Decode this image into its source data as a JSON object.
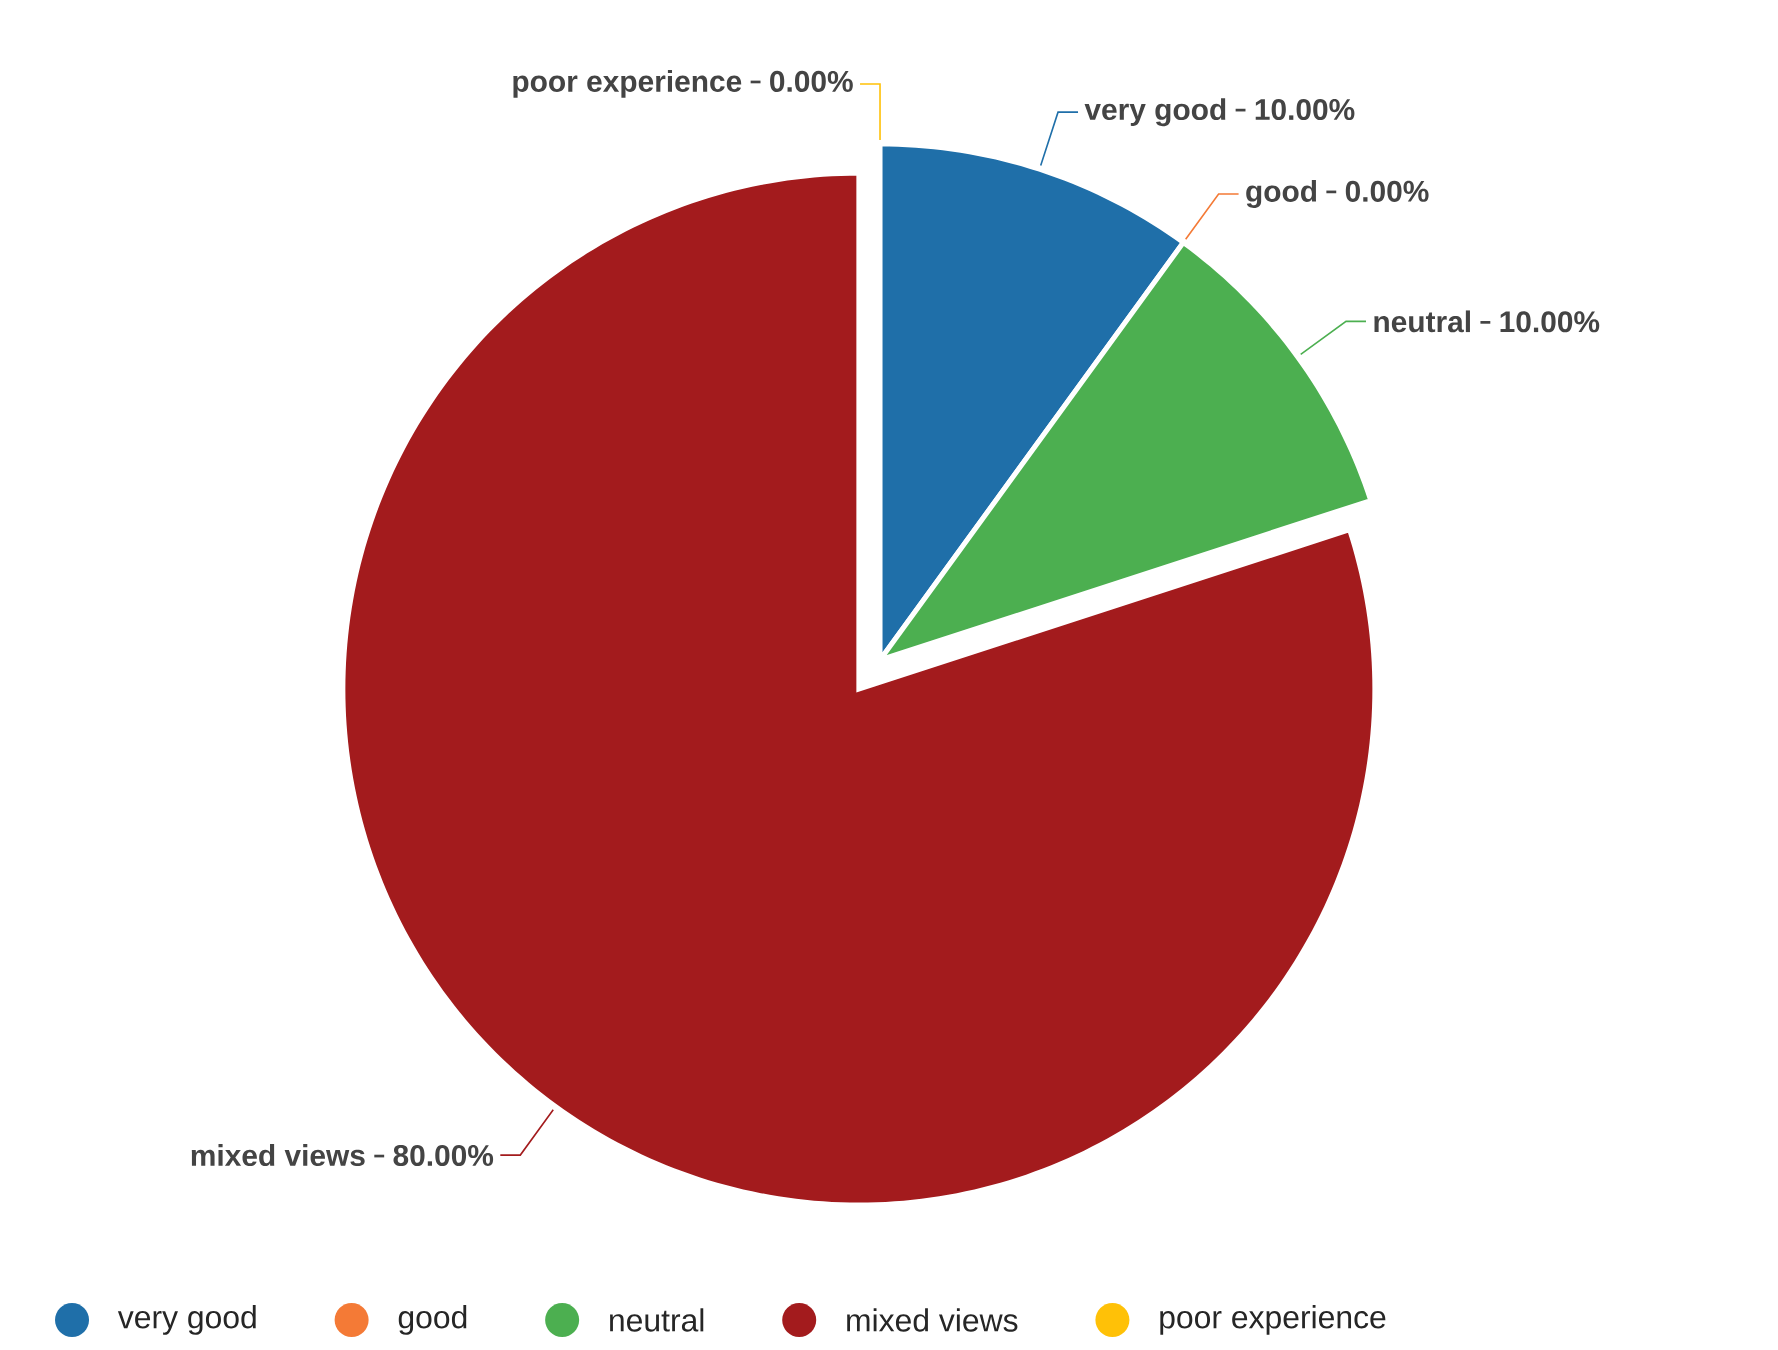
{
  "chart_data": {
    "type": "pie",
    "categories": [
      "very good",
      "good",
      "neutral",
      "mixed views",
      "poor experience"
    ],
    "values": [
      10,
      0,
      10,
      80,
      0
    ],
    "value_labels": [
      "10.00%",
      "0.00%",
      "10.00%",
      "80.00%",
      "0.00%"
    ],
    "colors": [
      "#1f6fa9",
      "#f47a36",
      "#4caf50",
      "#a31b1d",
      "#ffc107"
    ],
    "legend": "bottom"
  }
}
